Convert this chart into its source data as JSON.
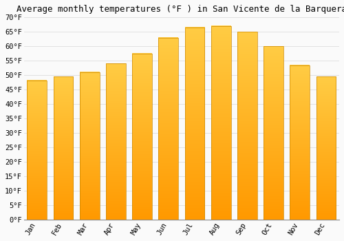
{
  "title": "Average monthly temperatures (°F ) in San Vicente de la Barquera",
  "months": [
    "Jan",
    "Feb",
    "Mar",
    "Apr",
    "May",
    "Jun",
    "Jul",
    "Aug",
    "Sep",
    "Oct",
    "Nov",
    "Dec"
  ],
  "values": [
    48.2,
    49.5,
    51.0,
    54.0,
    57.5,
    63.0,
    66.5,
    67.0,
    65.0,
    60.0,
    53.5,
    49.5
  ],
  "bar_color_top": "#FFCC44",
  "bar_color_bottom": "#FF9900",
  "bar_edge_color": "#CC8800",
  "ylim": [
    0,
    70
  ],
  "yticks": [
    0,
    5,
    10,
    15,
    20,
    25,
    30,
    35,
    40,
    45,
    50,
    55,
    60,
    65,
    70
  ],
  "background_color": "#FAFAFA",
  "grid_color": "#DDDDDD",
  "title_fontsize": 9,
  "tick_fontsize": 7.5,
  "font_family": "monospace"
}
